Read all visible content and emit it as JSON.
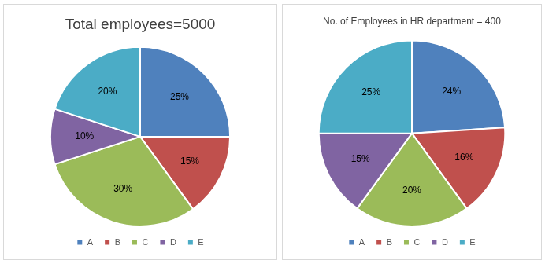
{
  "chart_data": [
    {
      "type": "pie",
      "title": "Total employees=5000",
      "categories": [
        "A",
        "B",
        "C",
        "D",
        "E"
      ],
      "values": [
        25,
        15,
        30,
        10,
        20
      ],
      "value_labels": [
        "25%",
        "15%",
        "30%",
        "10%",
        "20%"
      ],
      "colors": [
        "#4f81bd",
        "#c0504d",
        "#9bbb59",
        "#8064a2",
        "#4bacc6"
      ],
      "data_labels": true,
      "legend": "bottom"
    },
    {
      "type": "pie",
      "title": "No. of Employees in HR department = 400",
      "categories": [
        "A",
        "B",
        "C",
        "D",
        "E"
      ],
      "values": [
        24,
        16,
        20,
        15,
        25
      ],
      "value_labels": [
        "24%",
        "16%",
        "20%",
        "15%",
        "25%"
      ],
      "colors": [
        "#4f81bd",
        "#c0504d",
        "#9bbb59",
        "#8064a2",
        "#4bacc6"
      ],
      "data_labels": true,
      "legend": "bottom"
    }
  ]
}
